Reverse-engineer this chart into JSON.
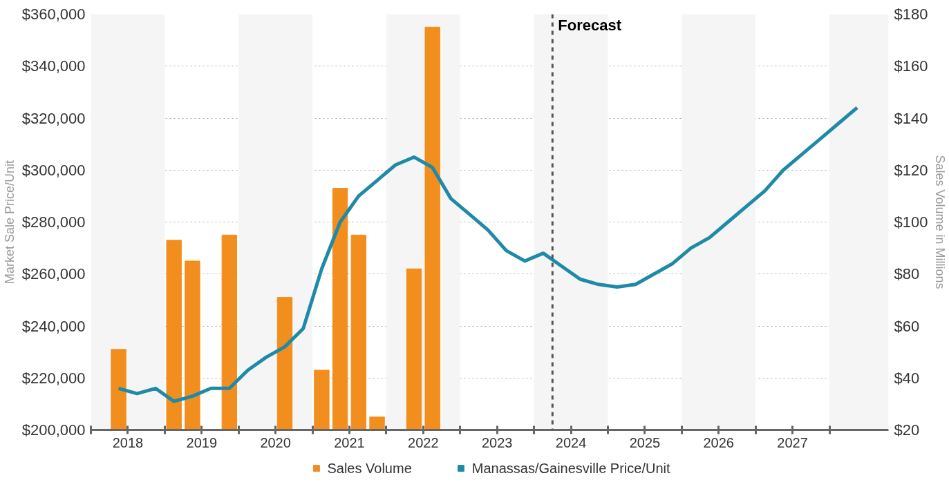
{
  "chart_data": {
    "type": "line",
    "ylabel": "Market Sale Price/Unit",
    "y2label": "Sales Volume in Millions",
    "xlim": [
      2018,
      2028.8
    ],
    "xticks": [
      {
        "value": 2018,
        "label": null
      },
      {
        "value": 2018.5,
        "label": "2018"
      },
      {
        "value": 2019,
        "label": null
      },
      {
        "value": 2019.5,
        "label": "2019"
      },
      {
        "value": 2020,
        "label": null
      },
      {
        "value": 2020.5,
        "label": "2020"
      },
      {
        "value": 2021,
        "label": null
      },
      {
        "value": 2021.5,
        "label": "2021"
      },
      {
        "value": 2022,
        "label": null
      },
      {
        "value": 2022.5,
        "label": "2022"
      },
      {
        "value": 2023,
        "label": null
      },
      {
        "value": 2023.5,
        "label": "2023"
      },
      {
        "value": 2024,
        "label": null
      },
      {
        "value": 2024.5,
        "label": "2024"
      },
      {
        "value": 2025,
        "label": null
      },
      {
        "value": 2025.5,
        "label": "2025"
      },
      {
        "value": 2026,
        "label": null
      },
      {
        "value": 2026.5,
        "label": "2026"
      },
      {
        "value": 2027,
        "label": null
      },
      {
        "value": 2027.5,
        "label": "2027"
      },
      {
        "value": 2028,
        "label": null
      }
    ],
    "ylim": [
      200000,
      360000
    ],
    "yticks": [
      {
        "value": 200000,
        "label": "$200,000"
      },
      {
        "value": 220000,
        "label": "$220,000"
      },
      {
        "value": 240000,
        "label": "$240,000"
      },
      {
        "value": 260000,
        "label": "$260,000"
      },
      {
        "value": 280000,
        "label": "$280,000"
      },
      {
        "value": 300000,
        "label": "$300,000"
      },
      {
        "value": 320000,
        "label": "$320,000"
      },
      {
        "value": 340000,
        "label": "$340,000"
      },
      {
        "value": 360000,
        "label": "$360,000"
      }
    ],
    "y2lim": [
      20,
      180
    ],
    "y2ticks": [
      {
        "value": 20,
        "label": "$20"
      },
      {
        "value": 40,
        "label": "$40"
      },
      {
        "value": 60,
        "label": "$60"
      },
      {
        "value": 80,
        "label": "$80"
      },
      {
        "value": 100,
        "label": "$100"
      },
      {
        "value": 120,
        "label": "$120"
      },
      {
        "value": 140,
        "label": "$140"
      },
      {
        "value": 160,
        "label": "$160"
      },
      {
        "value": 180,
        "label": "$180"
      }
    ],
    "grid": "y",
    "legend": "bottom",
    "marker": "none",
    "series": [
      {
        "name": "Sales Volume",
        "type": "bar",
        "axis": "y2",
        "color": "#f28e1e",
        "x": [
          2018.375,
          2019.125,
          2019.375,
          2019.875,
          2020.625,
          2021.125,
          2021.375,
          2021.625,
          2021.875,
          2022.375,
          2022.625
        ],
        "values": [
          51,
          93,
          85,
          95,
          71,
          43,
          113,
          95,
          25,
          82,
          175
        ]
      },
      {
        "name": "Manassas/Gainesville Price/Unit",
        "axis": "y",
        "color": "#1f8aa8",
        "line_style": "solid",
        "x": [
          2018.375,
          2018.625,
          2018.875,
          2019.125,
          2019.375,
          2019.625,
          2019.875,
          2020.125,
          2020.375,
          2020.625,
          2020.875,
          2021.125,
          2021.375,
          2021.625,
          2021.875,
          2022.125,
          2022.375,
          2022.625,
          2022.875,
          2023.125,
          2023.375,
          2023.625,
          2023.875,
          2024.125,
          2024.375,
          2024.625,
          2024.875,
          2025.125,
          2025.375,
          2025.625,
          2025.875,
          2026.125,
          2026.375,
          2026.625,
          2026.875,
          2027.125,
          2027.375,
          2027.625,
          2027.875,
          2028.125,
          2028.375
        ],
        "values": [
          216000,
          214000,
          216000,
          211000,
          213000,
          216000,
          216000,
          223000,
          228000,
          232000,
          239000,
          262000,
          280000,
          290000,
          296000,
          302000,
          305000,
          301000,
          289000,
          283000,
          277000,
          269000,
          265000,
          268000,
          263000,
          258000,
          256000,
          255000,
          256000,
          260000,
          264000,
          270000,
          274000,
          280000,
          286000,
          292000,
          300000,
          306000,
          312000,
          318000,
          324000
        ]
      }
    ],
    "ref_lines": [
      {
        "axis": "x",
        "value": 2024.25,
        "label": "Forecast",
        "color": "#555555",
        "line_style": "dashed"
      }
    ],
    "bands": [
      {
        "axis": "x",
        "from": 2018,
        "to": 2019,
        "color": "#f5f5f5"
      },
      {
        "axis": "x",
        "from": 2020,
        "to": 2021,
        "color": "#f5f5f5"
      },
      {
        "axis": "x",
        "from": 2022,
        "to": 2023,
        "color": "#f5f5f5"
      },
      {
        "axis": "x",
        "from": 2024,
        "to": 2025,
        "color": "#f5f5f5"
      },
      {
        "axis": "x",
        "from": 2026,
        "to": 2027,
        "color": "#f5f5f5"
      },
      {
        "axis": "x",
        "from": 2028,
        "to": 2028.8,
        "color": "#f5f5f5"
      }
    ]
  }
}
